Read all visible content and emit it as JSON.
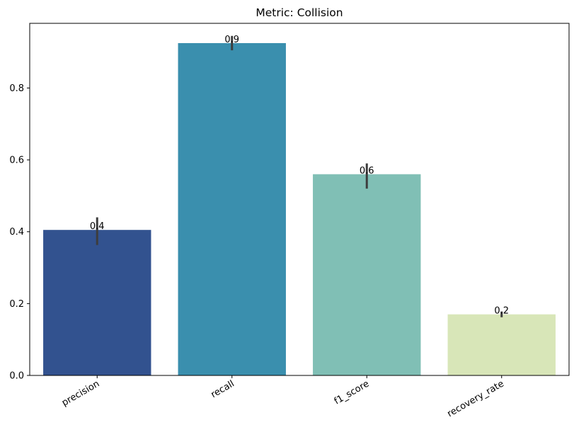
{
  "chart_data": {
    "type": "bar",
    "title": "Metric: Collision",
    "xlabel": "",
    "ylabel": "",
    "categories": [
      "precision",
      "recall",
      "f1_score",
      "recovery_rate"
    ],
    "values": [
      0.405,
      0.925,
      0.56,
      0.17
    ],
    "error_low": [
      0.363,
      0.905,
      0.52,
      0.162
    ],
    "error_high": [
      0.44,
      0.945,
      0.59,
      0.178
    ],
    "data_labels": [
      "0.4",
      "0.9",
      "0.6",
      "0.2"
    ],
    "colors": [
      "#32528f",
      "#3a8fae",
      "#80bfb5",
      "#d8e6b8"
    ],
    "error_color": "#3d3d3d",
    "ylim": [
      0,
      0.98
    ],
    "yticks": [
      0.0,
      0.2,
      0.4,
      0.6,
      0.8
    ],
    "ytick_labels": [
      "0.0",
      "0.2",
      "0.4",
      "0.6",
      "0.8"
    ],
    "grid": false,
    "legend": "none"
  }
}
